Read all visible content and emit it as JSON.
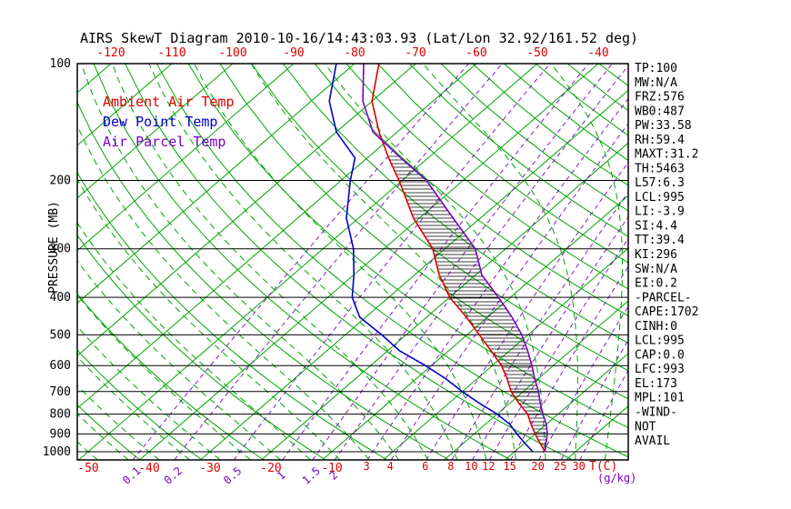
{
  "title": "AIRS SkewT Diagram 2010-10-16/14:43:03.93 (Lat/Lon 32.92/161.52 deg)",
  "legend": [
    {
      "label": "Ambient Air Temp",
      "series": "ambient"
    },
    {
      "label": "Dew Point Temp",
      "series": "dewpoint"
    },
    {
      "label": "Air Parcel Temp",
      "series": "parcel"
    }
  ],
  "colors": {
    "ambient": "#dd0000",
    "dewpoint": "#0000cc",
    "parcel": "#7a00c8",
    "green": "#00a400",
    "black": "#000000"
  },
  "stats": [
    "TP:100",
    "MW:N/A",
    "FRZ:576",
    "WB0:487",
    "PW:33.58",
    "RH:59.4",
    "MAXT:31.2",
    "TH:5463",
    "L57:6.3",
    "LCL:995",
    "LI:-3.9",
    "SI:4.4",
    "TT:39.4",
    "KI:296",
    "SW:N/A",
    "EI:0.2",
    "-PARCEL-",
    "CAPE:1702",
    "CINH:0",
    "LCL:995",
    "CAP:0.0",
    "LFC:993",
    "EL:173",
    "MPL:101",
    "-WIND-",
    "NOT",
    "AVAIL"
  ],
  "chart_data": {
    "type": "line",
    "diagram": "skew-t-log-p",
    "x_axis": {
      "label": "T(C)",
      "unit_secondary": "(g/kg)",
      "top_labels": [
        -120,
        -110,
        -100,
        -90,
        -80,
        -70,
        -60,
        -50,
        -40
      ],
      "bottom_labels": [
        -50,
        -40,
        -30,
        -20,
        -10
      ]
    },
    "y_axis": {
      "label": "PRESSURE (MB)",
      "scale": "log",
      "range": [
        100,
        1050
      ],
      "ticks": [
        100,
        200,
        300,
        400,
        500,
        600,
        700,
        800,
        900,
        1000
      ]
    },
    "series": [
      {
        "name": "Ambient Air Temp",
        "color_key": "ambient",
        "points_p_t": [
          [
            1000,
            25
          ],
          [
            950,
            22.5
          ],
          [
            900,
            20
          ],
          [
            850,
            17.5
          ],
          [
            800,
            15
          ],
          [
            750,
            11.5
          ],
          [
            700,
            8
          ],
          [
            650,
            5
          ],
          [
            600,
            1.5
          ],
          [
            550,
            -3
          ],
          [
            500,
            -8
          ],
          [
            450,
            -13.5
          ],
          [
            400,
            -20
          ],
          [
            350,
            -26
          ],
          [
            300,
            -32
          ],
          [
            250,
            -41
          ],
          [
            200,
            -50.5
          ],
          [
            175,
            -56.5
          ],
          [
            150,
            -63
          ],
          [
            125,
            -70
          ],
          [
            100,
            -76
          ]
        ]
      },
      {
        "name": "Dew Point Temp",
        "color_key": "dewpoint",
        "points_p_t": [
          [
            1000,
            23
          ],
          [
            950,
            20
          ],
          [
            900,
            17
          ],
          [
            850,
            14
          ],
          [
            800,
            10
          ],
          [
            750,
            5
          ],
          [
            700,
            0
          ],
          [
            650,
            -5
          ],
          [
            600,
            -11
          ],
          [
            550,
            -18
          ],
          [
            500,
            -24
          ],
          [
            450,
            -31
          ],
          [
            400,
            -36
          ],
          [
            350,
            -40
          ],
          [
            300,
            -45
          ],
          [
            250,
            -52
          ],
          [
            200,
            -58.5
          ],
          [
            175,
            -62
          ],
          [
            150,
            -70
          ],
          [
            125,
            -77
          ],
          [
            100,
            -83
          ]
        ]
      },
      {
        "name": "Air Parcel Temp",
        "color_key": "parcel",
        "points_p_t": [
          [
            1000,
            25
          ],
          [
            950,
            23.5
          ],
          [
            900,
            22
          ],
          [
            850,
            20
          ],
          [
            800,
            17.5
          ],
          [
            750,
            15
          ],
          [
            700,
            12.5
          ],
          [
            650,
            9.5
          ],
          [
            600,
            6.5
          ],
          [
            550,
            3
          ],
          [
            500,
            -1
          ],
          [
            450,
            -6
          ],
          [
            400,
            -12
          ],
          [
            350,
            -19
          ],
          [
            300,
            -25
          ],
          [
            250,
            -34.5
          ],
          [
            200,
            -46
          ],
          [
            175,
            -54.5
          ],
          [
            150,
            -64
          ],
          [
            125,
            -71.5
          ],
          [
            100,
            -78.5
          ]
        ]
      }
    ],
    "cape_hatch": {
      "lfc_mb": 993,
      "el_mb": 173
    },
    "background": {
      "isotherms_c": {
        "min": -130,
        "max": 40,
        "step": 10
      },
      "dry_adiabats_k": {
        "min": 220,
        "max": 460,
        "step": 10
      },
      "moist_adiabats_c": {
        "min": -50,
        "max": 35,
        "step": 5
      },
      "mixing_ratio_g_kg": [
        0.1,
        0.2,
        0.5,
        1,
        1.5,
        2,
        3,
        4,
        6,
        8,
        10,
        12,
        15,
        20,
        25,
        30
      ],
      "mixing_label_rotated_max": 2
    }
  }
}
